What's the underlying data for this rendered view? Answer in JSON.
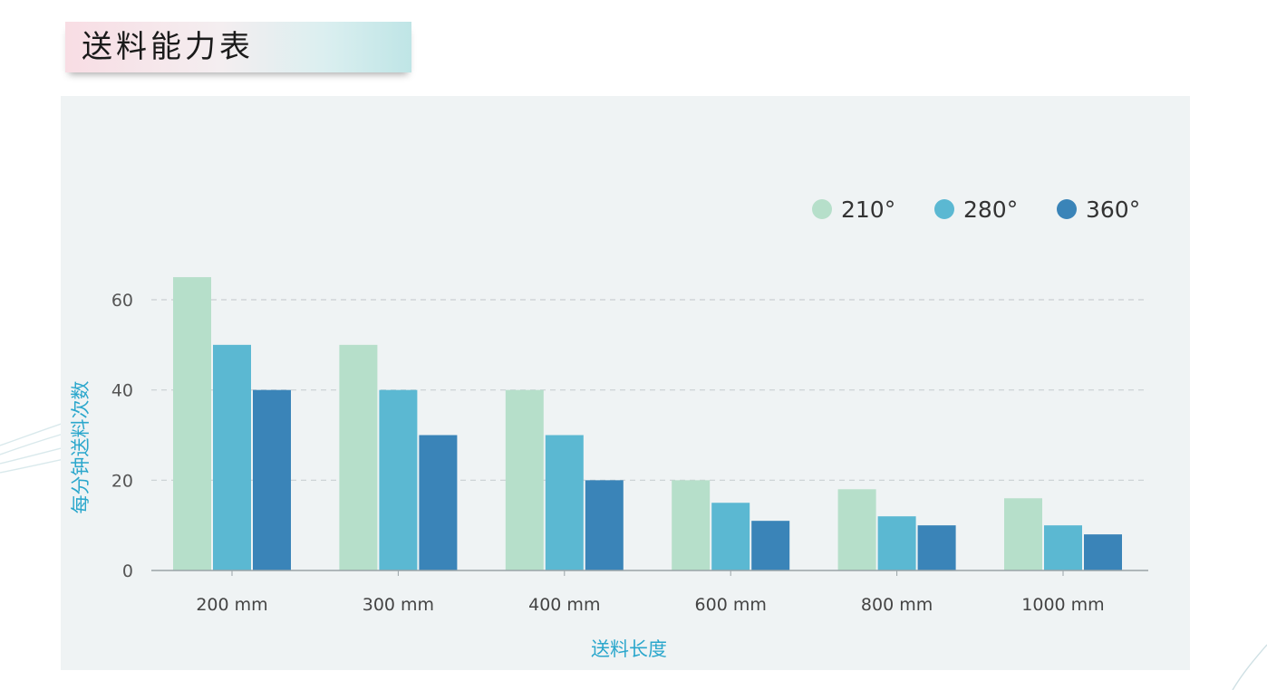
{
  "page_title": "送料能力表",
  "chart_data": {
    "type": "bar",
    "categories": [
      "200 mm",
      "300 mm",
      "400 mm",
      "600 mm",
      "800 mm",
      "1000 mm"
    ],
    "series": [
      {
        "name": "210°",
        "color": "#b6dfca",
        "values": [
          65,
          50,
          40,
          20,
          18,
          16
        ]
      },
      {
        "name": "280°",
        "color": "#5bb8d2",
        "values": [
          50,
          40,
          30,
          15,
          12,
          10
        ]
      },
      {
        "name": "360°",
        "color": "#3a84b8",
        "values": [
          40,
          30,
          20,
          11,
          10,
          8
        ]
      }
    ],
    "xlabel": "送料长度",
    "ylabel": "每分钟送料次数",
    "ylim": [
      0,
      60
    ],
    "yticks": [
      0,
      20,
      40,
      60
    ],
    "grid": "horizontal-dashed",
    "legend_position": "top-right"
  }
}
